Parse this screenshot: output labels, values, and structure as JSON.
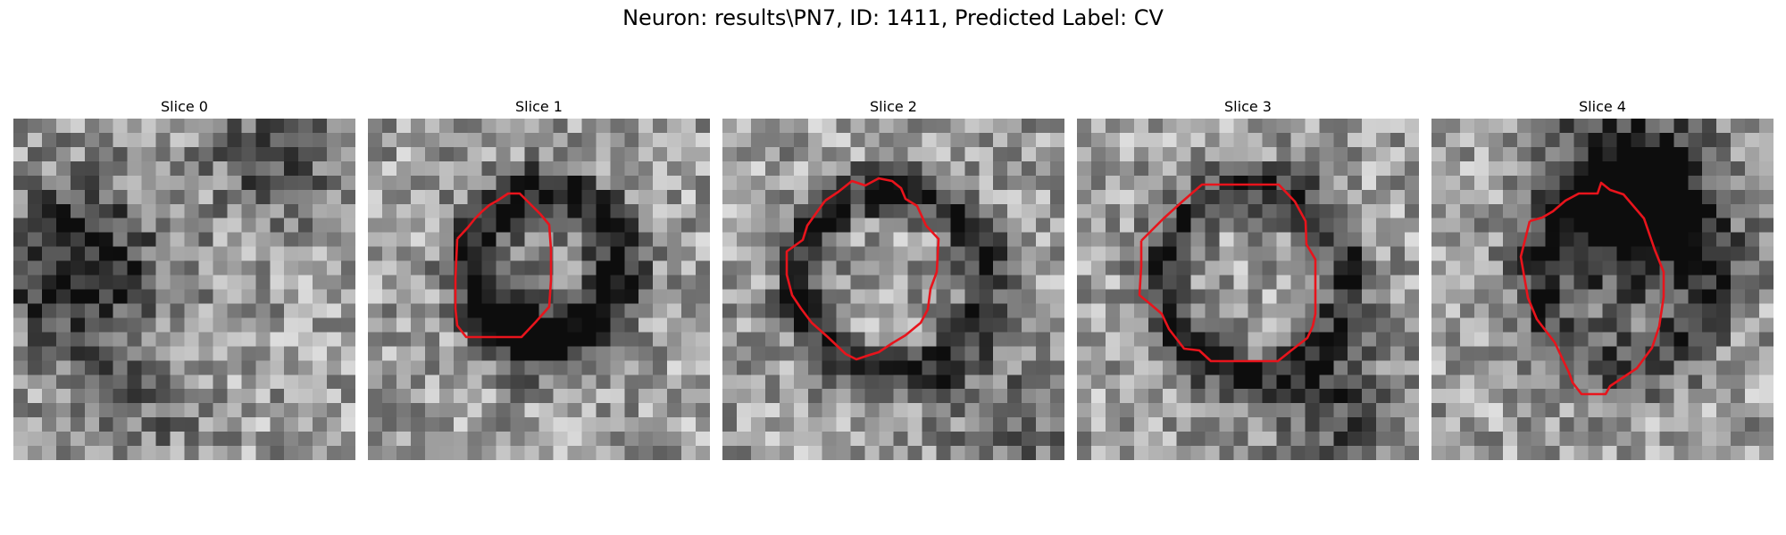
{
  "figure": {
    "title": "Neuron: results\\PN7, ID: 1411, Predicted Label: CV",
    "colormap": "gray",
    "contour_color": "#e8141c"
  },
  "slices": [
    {
      "label": "Slice 0",
      "has_contour": false
    },
    {
      "label": "Slice 1",
      "has_contour": true
    },
    {
      "label": "Slice 2",
      "has_contour": true
    },
    {
      "label": "Slice 3",
      "has_contour": true
    },
    {
      "label": "Slice 4",
      "has_contour": true
    }
  ]
}
